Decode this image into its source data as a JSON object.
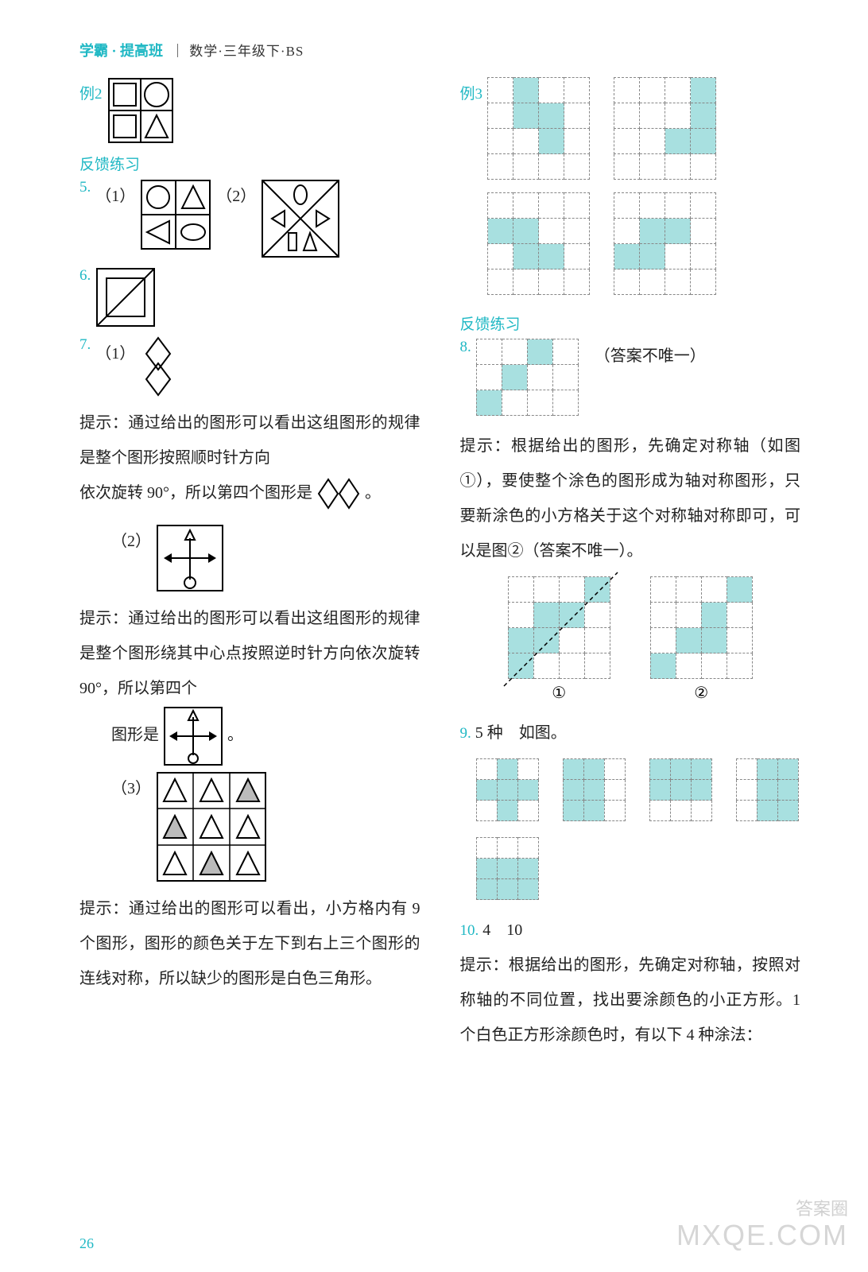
{
  "header": {
    "brand": "学霸 · 提高班",
    "sub": "｜  数学·三年级下·BS"
  },
  "left": {
    "ex2": "例2",
    "feedback": "反馈练习",
    "q5_num": "5.",
    "q5_1": "（1）",
    "q5_2": "（2）",
    "q6_num": "6.",
    "q7_num": "7.",
    "q7_1": "（1）",
    "hint1": "提示：通过给出的图形可以看出这组图形的规律是整个图形按照顺时针方向",
    "hint1b_a": "依次旋转 90°，所以第四个图形是",
    "hint1b_b": "。",
    "q7_2": "（2）",
    "hint2": "提示：通过给出的图形可以看出这组图形的规律是整个图形绕其中心点按照逆时针方向依次旋转 90°，所以第四个",
    "hint2b_a": "图形是",
    "hint2b_b": "。",
    "q7_3": "（3）",
    "hint3": "提示：通过给出的图形可以看出，小方格内有 9 个图形，图形的颜色关于左下到右上三个图形的连线对称，所以缺少的图形是白色三角形。"
  },
  "right": {
    "ex3": "例3",
    "feedback": "反馈练习",
    "q8_num": "8.",
    "q8_note": "（答案不唯一）",
    "hint8": "提示：根据给出的图形，先确定对称轴（如图①），要使整个涂色的图形成为轴对称图形，只要新涂色的小方格关于这个对称轴对称即可，可以是图②（答案不唯一）。",
    "circ1": "①",
    "circ2": "②",
    "q9_num": "9.",
    "q9_ans": "5 种　如图。",
    "q10_num": "10.",
    "q10_ans": "4　10",
    "hint10": "提示：根据给出的图形，先确定对称轴，按照对称轴的不同位置，找出要涂颜色的小正方形。1 个白色正方形涂颜色时，有以下 4 种涂法："
  },
  "grids": {
    "ex3_a": [
      [
        0,
        1,
        0,
        0
      ],
      [
        0,
        1,
        1,
        0
      ],
      [
        0,
        0,
        1,
        0
      ],
      [
        0,
        0,
        0,
        0
      ]
    ],
    "ex3_b": [
      [
        0,
        0,
        0,
        1
      ],
      [
        0,
        0,
        0,
        1
      ],
      [
        0,
        0,
        1,
        1
      ],
      [
        0,
        0,
        0,
        0
      ]
    ],
    "ex3_c": [
      [
        0,
        0,
        0,
        0
      ],
      [
        1,
        1,
        0,
        0
      ],
      [
        0,
        1,
        1,
        0
      ],
      [
        0,
        0,
        0,
        0
      ]
    ],
    "ex3_d": [
      [
        0,
        0,
        0,
        0
      ],
      [
        0,
        1,
        1,
        0
      ],
      [
        1,
        1,
        0,
        0
      ],
      [
        0,
        0,
        0,
        0
      ]
    ],
    "q8": [
      [
        0,
        0,
        1,
        0
      ],
      [
        0,
        1,
        0,
        0
      ],
      [
        1,
        0,
        0,
        0
      ]
    ],
    "fig1": [
      [
        0,
        0,
        0,
        1
      ],
      [
        0,
        1,
        1,
        0
      ],
      [
        1,
        1,
        0,
        0
      ],
      [
        1,
        0,
        0,
        0
      ]
    ],
    "fig2": [
      [
        0,
        0,
        0,
        1
      ],
      [
        0,
        0,
        1,
        0
      ],
      [
        0,
        1,
        1,
        0
      ],
      [
        1,
        0,
        0,
        0
      ]
    ],
    "q9_a": [
      [
        0,
        1,
        0
      ],
      [
        1,
        1,
        1
      ],
      [
        0,
        1,
        0
      ]
    ],
    "q9_b": [
      [
        1,
        1,
        0
      ],
      [
        1,
        1,
        0
      ],
      [
        1,
        1,
        0
      ]
    ],
    "q9_c": [
      [
        1,
        1,
        1
      ],
      [
        1,
        1,
        1
      ],
      [
        0,
        0,
        0
      ]
    ],
    "q9_d": [
      [
        0,
        1,
        1
      ],
      [
        0,
        1,
        1
      ],
      [
        0,
        1,
        1
      ]
    ],
    "q9_e": [
      [
        0,
        0,
        0
      ],
      [
        1,
        1,
        1
      ],
      [
        1,
        1,
        1
      ]
    ]
  },
  "colors": {
    "accent": "#20b8c4",
    "cell_fill": "#a8e0e0",
    "ink": "#222222"
  },
  "page": "26",
  "watermark_small": "答案圈",
  "watermark": "MXQE.COM"
}
